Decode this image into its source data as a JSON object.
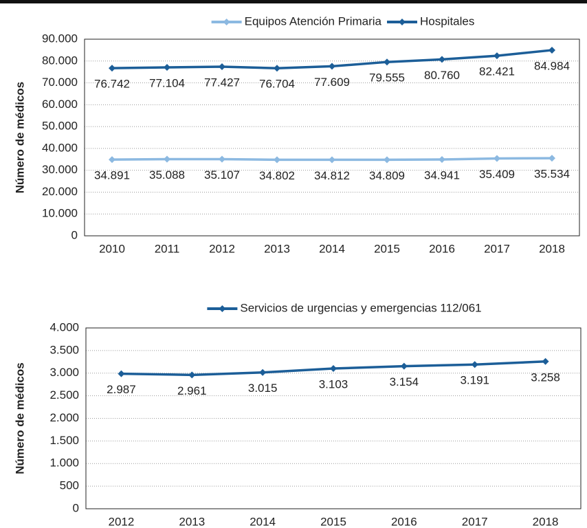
{
  "chart_data": [
    {
      "type": "line",
      "y_label": "Número de médicos",
      "categories": [
        "2010",
        "2011",
        "2012",
        "2013",
        "2014",
        "2015",
        "2016",
        "2017",
        "2018"
      ],
      "series": [
        {
          "name": "Equipos Atención Primaria",
          "color": "#8cb9e1",
          "values": [
            34891,
            35088,
            35107,
            34802,
            34812,
            34809,
            34941,
            35409,
            35534
          ],
          "value_labels": [
            "34.891",
            "35.088",
            "35.107",
            "34.802",
            "34.812",
            "34.809",
            "34.941",
            "35.409",
            "35.534"
          ]
        },
        {
          "name": "Hospitales",
          "color": "#1c5e98",
          "values": [
            76742,
            77104,
            77427,
            76704,
            77609,
            79555,
            80760,
            82421,
            84984
          ],
          "value_labels": [
            "76.742",
            "77.104",
            "77.427",
            "76.704",
            "77.609",
            "79.555",
            "80.760",
            "82.421",
            "84.984"
          ]
        }
      ],
      "ylim": [
        0,
        90000
      ],
      "yticks": [
        0,
        {
          "value": 10000,
          "label": "10.000"
        },
        {
          "value": 20000,
          "label": "20.000"
        },
        {
          "value": 30000,
          "label": "30.000"
        },
        {
          "value": 40000,
          "label": "40.000"
        },
        {
          "value": 50000,
          "label": "50.000"
        },
        {
          "value": 60000,
          "label": "60.000"
        },
        {
          "value": 70000,
          "label": "70.000"
        },
        {
          "value": 80000,
          "label": "80.000"
        },
        {
          "value": 90000,
          "label": "90.000"
        }
      ],
      "grid": true,
      "legend": "top"
    },
    {
      "type": "line",
      "y_label": "Número de médicos",
      "categories": [
        "2012",
        "2013",
        "2014",
        "2015",
        "2016",
        "2017",
        "2018"
      ],
      "series": [
        {
          "name": "Servicios de urgencias y emergencias 112/061",
          "color": "#1c5e98",
          "values": [
            2987,
            2961,
            3015,
            3103,
            3154,
            3191,
            3258
          ],
          "value_labels": [
            "2.987",
            "2.961",
            "3.015",
            "3.103",
            "3.154",
            "3.191",
            "3.258"
          ]
        }
      ],
      "ylim": [
        0,
        4000
      ],
      "yticks": [
        0,
        500,
        {
          "value": 1000,
          "label": "1.000"
        },
        {
          "value": 1500,
          "label": "1.500"
        },
        {
          "value": 2000,
          "label": "2.000"
        },
        {
          "value": 2500,
          "label": "2.500"
        },
        {
          "value": 3000,
          "label": "3.000"
        },
        {
          "value": 3500,
          "label": "3.500"
        },
        {
          "value": 4000,
          "label": "4.000"
        }
      ],
      "grid": true,
      "legend": "top"
    }
  ]
}
